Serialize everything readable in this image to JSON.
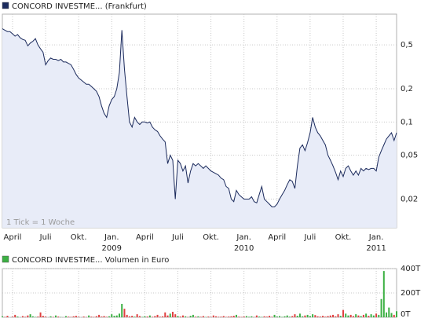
{
  "chart_data": [
    {
      "type": "line",
      "title": "CONCORD INVESTME... (Frankfurt)",
      "annotation": "1 Tick = 1 Woche",
      "color": "#1b2a5c",
      "area_color": "#e8ecf8",
      "log_scale": true,
      "grid": true,
      "x": [
        0,
        1,
        2,
        3,
        4,
        5,
        6,
        7,
        8,
        9,
        10,
        11,
        12,
        13,
        14,
        15,
        16,
        17,
        18,
        19,
        20,
        21,
        22,
        23,
        24,
        25,
        26,
        27,
        28,
        29,
        30,
        31,
        32,
        33,
        34,
        35,
        36,
        37,
        38,
        39,
        40,
        41,
        42,
        43,
        44,
        45,
        46,
        47,
        48,
        49,
        50,
        51,
        52,
        53,
        54,
        55,
        56,
        57,
        58,
        59,
        60,
        61,
        62,
        63,
        64,
        65,
        66,
        67,
        68,
        69,
        70,
        71,
        72,
        73,
        74,
        75,
        76,
        77,
        78,
        79,
        80,
        81,
        82,
        83,
        84,
        85,
        86,
        87,
        88,
        89,
        90,
        91,
        92,
        93,
        94,
        95,
        96,
        97,
        98,
        99,
        100,
        101,
        102,
        103,
        104,
        105,
        106,
        107,
        108,
        109,
        110,
        111,
        112,
        113,
        114,
        115,
        116,
        117,
        118,
        119,
        120,
        121,
        122,
        123,
        124,
        125,
        126,
        127,
        128,
        129,
        130,
        131,
        132,
        133,
        134,
        135,
        136,
        137,
        138,
        139,
        140,
        141,
        142,
        143,
        144,
        145,
        146,
        147,
        148,
        149,
        150,
        151,
        152,
        153,
        154,
        155
      ],
      "values": [
        0.7,
        0.68,
        0.66,
        0.66,
        0.63,
        0.6,
        0.62,
        0.58,
        0.56,
        0.55,
        0.49,
        0.52,
        0.54,
        0.57,
        0.5,
        0.46,
        0.43,
        0.33,
        0.36,
        0.38,
        0.37,
        0.37,
        0.36,
        0.37,
        0.35,
        0.35,
        0.34,
        0.33,
        0.3,
        0.27,
        0.25,
        0.24,
        0.23,
        0.22,
        0.22,
        0.21,
        0.2,
        0.19,
        0.17,
        0.14,
        0.12,
        0.11,
        0.14,
        0.16,
        0.17,
        0.2,
        0.28,
        0.68,
        0.3,
        0.17,
        0.1,
        0.09,
        0.11,
        0.1,
        0.095,
        0.1,
        0.1,
        0.098,
        0.1,
        0.09,
        0.085,
        0.082,
        0.075,
        0.07,
        0.066,
        0.042,
        0.05,
        0.045,
        0.02,
        0.045,
        0.042,
        0.036,
        0.04,
        0.028,
        0.036,
        0.042,
        0.04,
        0.042,
        0.04,
        0.038,
        0.04,
        0.038,
        0.036,
        0.035,
        0.034,
        0.033,
        0.031,
        0.03,
        0.026,
        0.025,
        0.02,
        0.019,
        0.024,
        0.022,
        0.021,
        0.02,
        0.02,
        0.02,
        0.021,
        0.019,
        0.0185,
        0.022,
        0.026,
        0.02,
        0.019,
        0.018,
        0.017,
        0.017,
        0.018,
        0.02,
        0.022,
        0.024,
        0.027,
        0.03,
        0.029,
        0.025,
        0.04,
        0.058,
        0.062,
        0.055,
        0.065,
        0.08,
        0.11,
        0.09,
        0.08,
        0.075,
        0.068,
        0.062,
        0.05,
        0.045,
        0.04,
        0.035,
        0.03,
        0.036,
        0.032,
        0.038,
        0.04,
        0.036,
        0.033,
        0.036,
        0.033,
        0.038,
        0.036,
        0.038,
        0.037,
        0.038,
        0.038,
        0.036,
        0.048,
        0.055,
        0.062,
        0.07,
        0.075,
        0.08,
        0.068,
        0.08
      ],
      "xlim": [
        0,
        155
      ],
      "xticks": [
        {
          "value": 4,
          "label": "April"
        },
        {
          "value": 17,
          "label": "Juli"
        },
        {
          "value": 30,
          "label": "Okt."
        },
        {
          "value": 43,
          "label": "Jan."
        },
        {
          "value": 56,
          "label": "April"
        },
        {
          "value": 69,
          "label": "Juli"
        },
        {
          "value": 82,
          "label": "Okt."
        },
        {
          "value": 95,
          "label": "Jan."
        },
        {
          "value": 108,
          "label": "April"
        },
        {
          "value": 121,
          "label": "Juli"
        },
        {
          "value": 134,
          "label": "Okt."
        },
        {
          "value": 147,
          "label": "Jan."
        }
      ],
      "year_labels": [
        {
          "value": 43,
          "label": "2009"
        },
        {
          "value": 95,
          "label": "2010"
        },
        {
          "value": 147,
          "label": "2011"
        }
      ],
      "ylim": [
        0.011,
        0.95
      ],
      "yticks": [
        {
          "value": 0.5,
          "label": "0,5"
        },
        {
          "value": 0.2,
          "label": "0,2"
        },
        {
          "value": 0.1,
          "label": "0,1"
        },
        {
          "value": 0.05,
          "label": "0,05"
        },
        {
          "value": 0.02,
          "label": "0,02"
        }
      ]
    },
    {
      "type": "bar",
      "title": "CONCORD INVESTME... Volumen in Euro",
      "up_color": "#3cb043",
      "down_color": "#e04040",
      "grid": true,
      "values": [
        8,
        3,
        12,
        0,
        5,
        20,
        6,
        0,
        10,
        4,
        15,
        25,
        8,
        3,
        6,
        40,
        12,
        5,
        0,
        8,
        3,
        15,
        6,
        2,
        0,
        10,
        5,
        3,
        8,
        12,
        4,
        0,
        6,
        2,
        15,
        5,
        3,
        9,
        20,
        6,
        10,
        4,
        8,
        25,
        12,
        15,
        30,
        110,
        70,
        20,
        8,
        12,
        5,
        25,
        10,
        3,
        8,
        6,
        15,
        4,
        10,
        20,
        5,
        8,
        40,
        15,
        30,
        45,
        25,
        10,
        6,
        15,
        8,
        3,
        12,
        20,
        5,
        8,
        4,
        10,
        2,
        6,
        3,
        15,
        8,
        4,
        5,
        10,
        3,
        6,
        8,
        12,
        20,
        5,
        3,
        6,
        10,
        4,
        8,
        2,
        15,
        6,
        3,
        8,
        5,
        12,
        4,
        20,
        6,
        10,
        3,
        8,
        15,
        5,
        10,
        25,
        12,
        30,
        8,
        15,
        20,
        10,
        25,
        18,
        8,
        6,
        12,
        5,
        10,
        15,
        20,
        8,
        25,
        12,
        60,
        30,
        15,
        20,
        10,
        25,
        15,
        10,
        20,
        30,
        12,
        25,
        15,
        30,
        20,
        150,
        380,
        40,
        80,
        35,
        20,
        50
      ],
      "ylim": [
        0,
        400
      ],
      "yticks": [
        {
          "value": 0,
          "label": "0T"
        },
        {
          "value": 200,
          "label": "200T"
        },
        {
          "value": 400,
          "label": "400T"
        }
      ]
    }
  ]
}
